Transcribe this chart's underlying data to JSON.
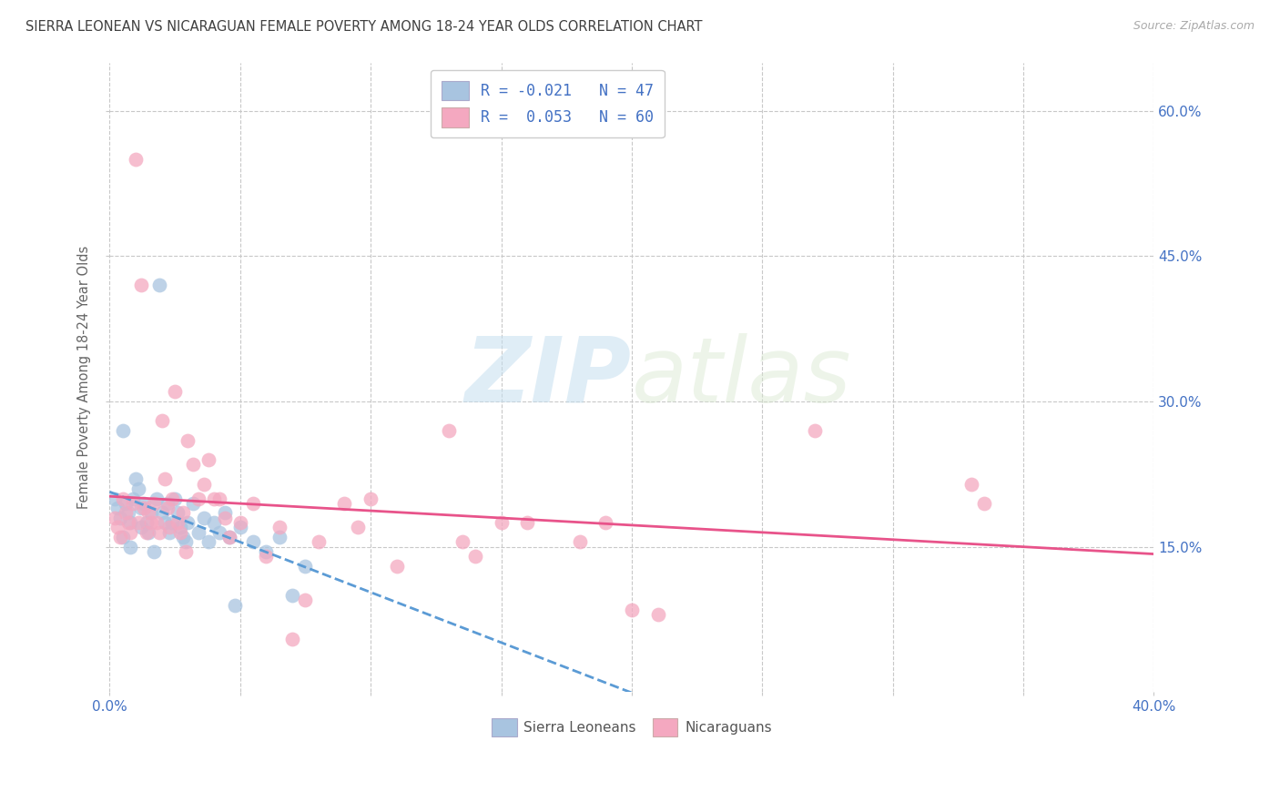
{
  "title": "SIERRA LEONEAN VS NICARAGUAN FEMALE POVERTY AMONG 18-24 YEAR OLDS CORRELATION CHART",
  "source": "Source: ZipAtlas.com",
  "ylabel": "Female Poverty Among 18-24 Year Olds",
  "xlim": [
    0.0,
    0.4
  ],
  "ylim": [
    0.0,
    0.65
  ],
  "watermark_zip": "ZIP",
  "watermark_atlas": "atlas",
  "legend_sl_r": "-0.021",
  "legend_sl_n": "47",
  "legend_ni_r": "0.053",
  "legend_ni_n": "60",
  "sl_color": "#a8c4e0",
  "ni_color": "#f4a8c0",
  "sl_line_color": "#5b9bd5",
  "ni_line_color": "#e8538a",
  "title_color": "#404040",
  "axis_tick_color": "#4472c4",
  "legend_text_color": "#4472c4",
  "background_color": "#ffffff",
  "grid_color": "#c8c8c8",
  "sierra_x": [
    0.002,
    0.003,
    0.004,
    0.005,
    0.005,
    0.006,
    0.007,
    0.008,
    0.008,
    0.009,
    0.01,
    0.011,
    0.012,
    0.012,
    0.013,
    0.014,
    0.015,
    0.016,
    0.017,
    0.018,
    0.019,
    0.02,
    0.021,
    0.022,
    0.023,
    0.024,
    0.025,
    0.026,
    0.027,
    0.028,
    0.029,
    0.03,
    0.032,
    0.034,
    0.036,
    0.038,
    0.04,
    0.042,
    0.044,
    0.046,
    0.048,
    0.05,
    0.055,
    0.06,
    0.065,
    0.07,
    0.075
  ],
  "sierra_y": [
    0.2,
    0.19,
    0.18,
    0.27,
    0.16,
    0.195,
    0.185,
    0.175,
    0.15,
    0.2,
    0.22,
    0.21,
    0.19,
    0.17,
    0.195,
    0.175,
    0.165,
    0.185,
    0.145,
    0.2,
    0.42,
    0.185,
    0.175,
    0.195,
    0.165,
    0.175,
    0.2,
    0.185,
    0.17,
    0.16,
    0.155,
    0.175,
    0.195,
    0.165,
    0.18,
    0.155,
    0.175,
    0.165,
    0.185,
    0.16,
    0.09,
    0.17,
    0.155,
    0.145,
    0.16,
    0.1,
    0.13
  ],
  "nicaragua_x": [
    0.002,
    0.003,
    0.004,
    0.005,
    0.006,
    0.007,
    0.008,
    0.009,
    0.01,
    0.011,
    0.012,
    0.013,
    0.014,
    0.015,
    0.016,
    0.017,
    0.018,
    0.019,
    0.02,
    0.021,
    0.022,
    0.023,
    0.024,
    0.025,
    0.026,
    0.027,
    0.028,
    0.029,
    0.03,
    0.032,
    0.034,
    0.036,
    0.038,
    0.04,
    0.042,
    0.044,
    0.046,
    0.05,
    0.055,
    0.06,
    0.065,
    0.07,
    0.075,
    0.08,
    0.09,
    0.095,
    0.1,
    0.11,
    0.13,
    0.135,
    0.14,
    0.15,
    0.16,
    0.18,
    0.19,
    0.2,
    0.21,
    0.27,
    0.33,
    0.335
  ],
  "nicaragua_y": [
    0.18,
    0.17,
    0.16,
    0.2,
    0.185,
    0.175,
    0.165,
    0.195,
    0.55,
    0.175,
    0.42,
    0.19,
    0.165,
    0.185,
    0.175,
    0.195,
    0.175,
    0.165,
    0.28,
    0.22,
    0.19,
    0.17,
    0.2,
    0.31,
    0.175,
    0.165,
    0.185,
    0.145,
    0.26,
    0.235,
    0.2,
    0.215,
    0.24,
    0.2,
    0.2,
    0.18,
    0.16,
    0.175,
    0.195,
    0.14,
    0.17,
    0.055,
    0.095,
    0.155,
    0.195,
    0.17,
    0.2,
    0.13,
    0.27,
    0.155,
    0.14,
    0.175,
    0.175,
    0.155,
    0.175,
    0.085,
    0.08,
    0.27,
    0.215,
    0.195
  ]
}
